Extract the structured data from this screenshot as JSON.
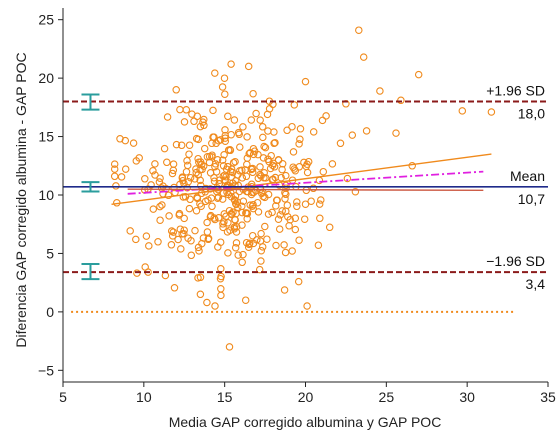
{
  "chart_data": {
    "type": "scatter",
    "title": "",
    "xlabel": "Media GAP corregido albumina y GAP POC",
    "ylabel": "Diferencia GAP corregido albumina - GAP POC",
    "xlim": [
      5,
      35
    ],
    "ylim": [
      -6,
      26
    ],
    "xticks": [
      5,
      10,
      15,
      20,
      25,
      30,
      35
    ],
    "yticks": [
      -5,
      0,
      5,
      10,
      15,
      20,
      25
    ],
    "grid": false,
    "reference_lines": {
      "upper": {
        "label": "+1.96 SD",
        "value_label": "18,0",
        "y": 18.0,
        "color": "#8b1a1a",
        "style": "dashed"
      },
      "mean": {
        "label": "Mean",
        "value_label": "10,7",
        "y": 10.7,
        "color": "#1f2a8a",
        "style": "solid"
      },
      "lower": {
        "label": "−1.96 SD",
        "value_label": "3,4",
        "y": 3.4,
        "color": "#8b1a1a",
        "style": "dashed"
      },
      "zero": {
        "y": 0,
        "color": "#f08a1c",
        "style": "dotted",
        "x_range": [
          5.5,
          33
        ]
      }
    },
    "regression_lines": [
      {
        "color": "#f08a1c",
        "style": "solid",
        "x": [
          8,
          31.5
        ],
        "y": [
          9.2,
          13.5
        ]
      },
      {
        "color": "#e020e0",
        "style": "dashdot",
        "x": [
          9,
          31
        ],
        "y": [
          10.1,
          12.0
        ]
      },
      {
        "color": "#cd5b45",
        "style": "solid",
        "x": [
          9,
          31
        ],
        "y": [
          10.5,
          10.4
        ]
      }
    ],
    "error_bars": [
      {
        "x": 6.7,
        "y_low": 17.3,
        "y_high": 18.6
      },
      {
        "x": 6.7,
        "y_low": 10.3,
        "y_high": 11.1
      },
      {
        "x": 6.7,
        "y_low": 2.8,
        "y_high": 4.1
      }
    ],
    "colors": {
      "points": "#f08a1c",
      "error_bars": "#2a9d9d",
      "axis": "#222222"
    }
  }
}
